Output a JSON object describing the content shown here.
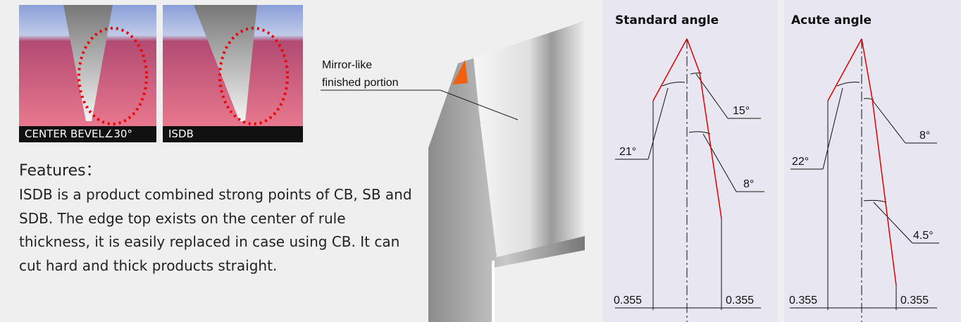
{
  "images": [
    {
      "caption": "CENTER BEVEL∠30°"
    },
    {
      "caption": "ISDB"
    }
  ],
  "features": {
    "heading": "Features：",
    "body": "ISDB is a product combined strong points of CB, SB and SDB. The edge top exists on the center of rule thickness, it is easily replaced in case using CB. It can cut hard and thick products straight."
  },
  "photo": {
    "callout": [
      "Mirror-like",
      "finished portion"
    ]
  },
  "diagrams": [
    {
      "title": "Standard angle",
      "angles": [
        "21°",
        "15°",
        "8°"
      ],
      "dims": [
        "0.355",
        "0.355"
      ]
    },
    {
      "title": "Acute angle",
      "angles": [
        "22°",
        "8°",
        "4.5°"
      ],
      "dims": [
        "0.355",
        "0.355"
      ]
    }
  ]
}
